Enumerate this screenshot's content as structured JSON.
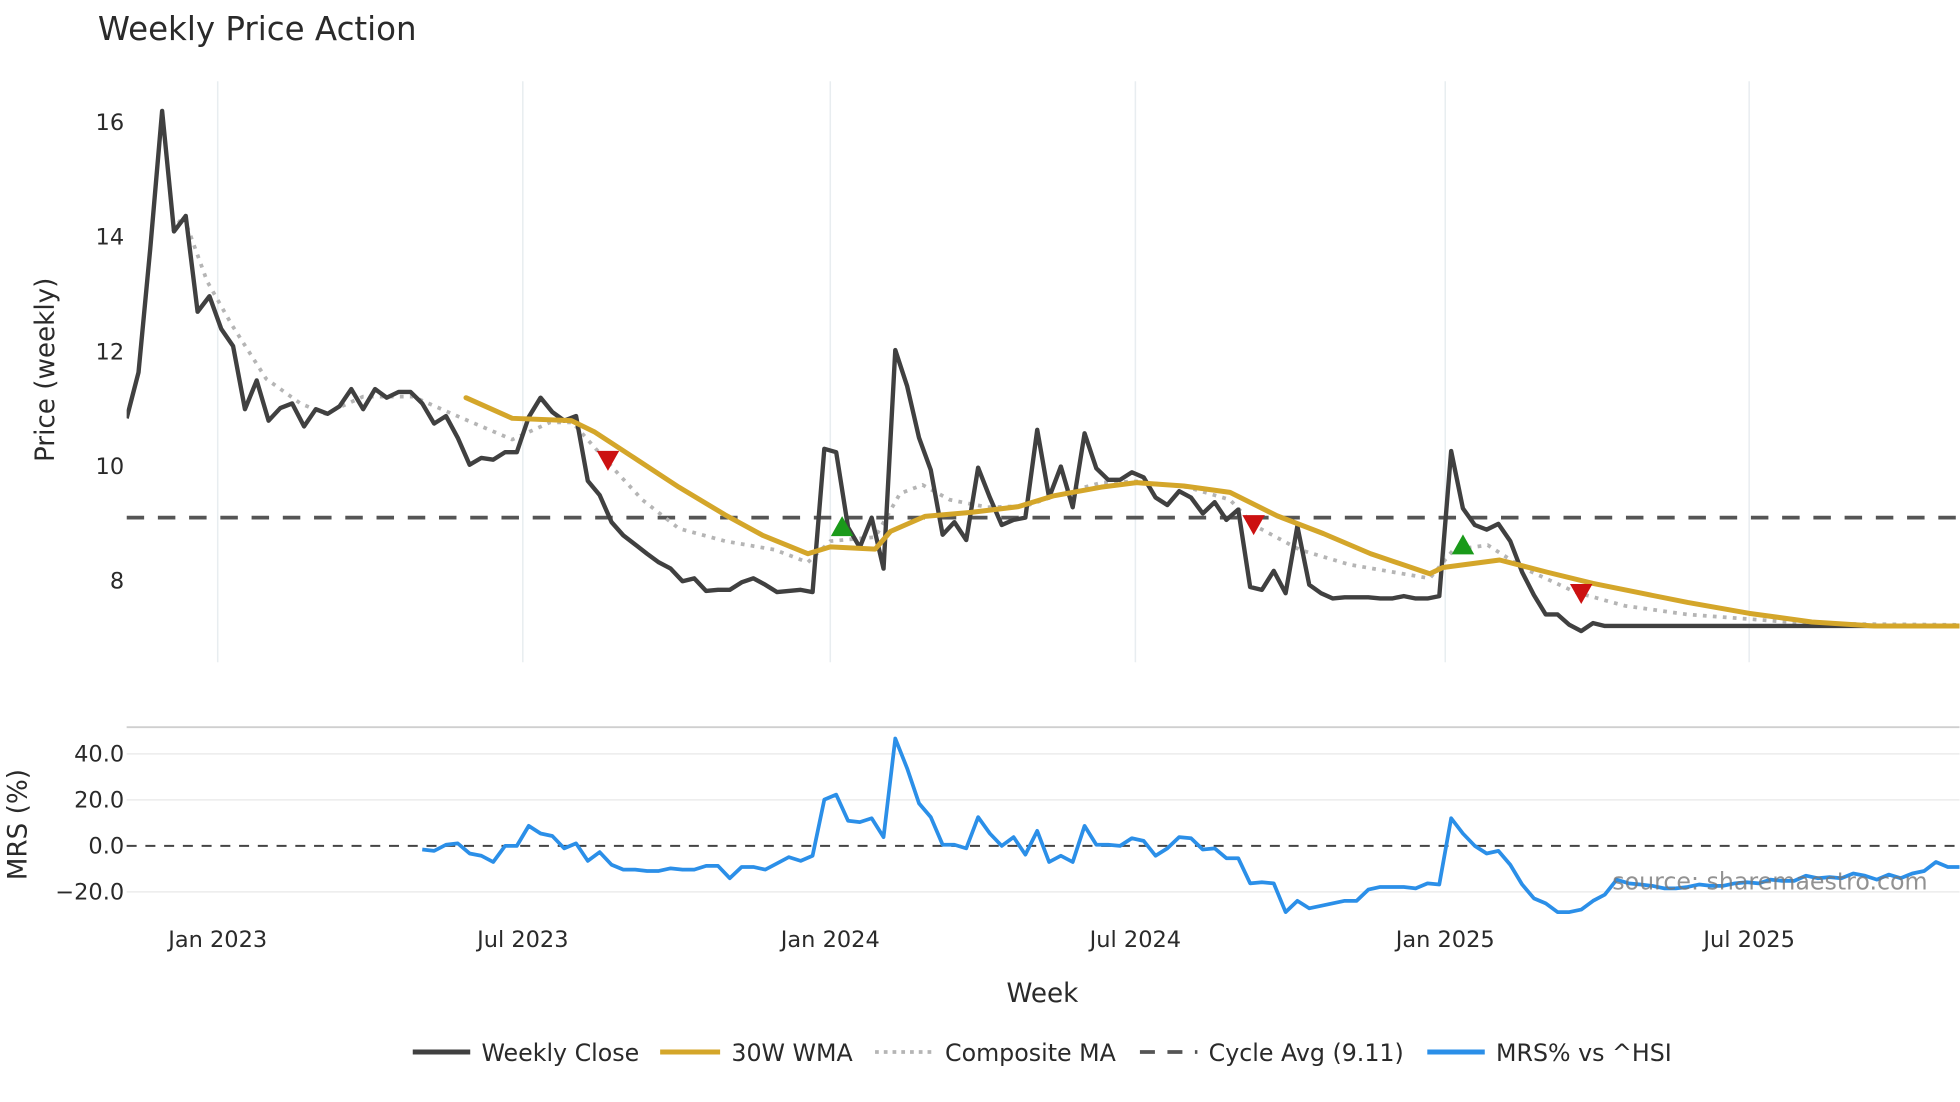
{
  "chart_data": [
    {
      "type": "line",
      "title": "Weekly Price Action",
      "ylabel": "Price (weekly)",
      "xlabel": "Week",
      "x_unit": "weeks since first plotted week (~early Nov 2022)",
      "x_range": [
        0,
        155
      ],
      "ylim": [
        6.9,
        16.7
      ],
      "yticks": [
        16,
        14,
        12,
        10,
        8
      ],
      "xticks": [
        {
          "week": 7.7,
          "label": "Jan 2023"
        },
        {
          "week": 33.5,
          "label": "Jul 2023"
        },
        {
          "week": 59.5,
          "label": "Jan 2024"
        },
        {
          "week": 85.3,
          "label": "Jul 2024"
        },
        {
          "week": 111.5,
          "label": "Jan 2025"
        },
        {
          "week": 137.2,
          "label": "Jul 2025"
        }
      ],
      "grid": "vertical",
      "series": [
        {
          "name": "Weekly Close",
          "color": "#404040",
          "start_week": 0,
          "values": [
            10.84,
            11.64,
            13.8,
            16.2,
            14.1,
            14.37,
            12.7,
            12.97,
            12.4,
            12.1,
            11.0,
            11.5,
            10.8,
            11.02,
            11.1,
            10.7,
            11.0,
            10.92,
            11.05,
            11.35,
            11.0,
            11.35,
            11.2,
            11.3,
            11.3,
            11.1,
            10.75,
            10.88,
            10.5,
            10.03,
            10.15,
            10.12,
            10.25,
            10.25,
            10.86,
            11.2,
            10.95,
            10.8,
            10.88,
            9.75,
            9.5,
            9.03,
            8.8,
            8.64,
            8.48,
            8.33,
            8.22,
            8.0,
            8.05,
            7.83,
            7.85,
            7.85,
            7.98,
            8.05,
            7.94,
            7.81,
            7.83,
            7.85,
            7.81,
            10.31,
            10.25,
            8.94,
            8.59,
            9.11,
            8.22,
            12.03,
            11.4,
            10.5,
            9.94,
            8.81,
            9.03,
            8.72,
            9.98,
            9.46,
            8.98,
            9.07,
            9.11,
            10.64,
            9.46,
            10.0,
            9.29,
            10.58,
            9.97,
            9.77,
            9.77,
            9.9,
            9.81,
            9.46,
            9.33,
            9.57,
            9.46,
            9.18,
            9.38,
            9.07,
            9.25,
            7.9,
            7.85,
            8.18,
            7.79,
            8.96,
            7.94,
            7.79,
            7.7,
            7.72,
            7.72,
            7.72,
            7.7,
            7.7,
            7.74,
            7.7,
            7.7,
            7.74,
            10.27,
            9.27,
            8.98,
            8.9,
            9.0,
            8.7,
            8.16,
            7.76,
            7.42,
            7.42,
            7.24,
            7.13,
            7.27,
            7.22,
            7.22,
            7.22,
            7.22,
            7.22,
            7.22,
            7.22,
            7.22,
            7.22,
            7.22,
            7.22,
            7.22,
            7.22,
            7.22,
            7.22,
            7.22,
            7.22,
            7.22,
            7.22,
            7.22,
            7.22,
            7.22,
            7.22,
            7.22,
            7.22,
            7.22
          ]
        },
        {
          "name": "30W WMA",
          "color": "#D4A62A",
          "points": [
            [
              28.7,
              11.2
            ],
            [
              32.6,
              10.84
            ],
            [
              37.6,
              10.8
            ],
            [
              39.6,
              10.6
            ],
            [
              42.7,
              10.18
            ],
            [
              46.7,
              9.64
            ],
            [
              50.6,
              9.16
            ],
            [
              53.8,
              8.8
            ],
            [
              57.6,
              8.48
            ],
            [
              59.5,
              8.6
            ],
            [
              63.3,
              8.56
            ],
            [
              64.6,
              8.87
            ],
            [
              67.5,
              9.13
            ],
            [
              71.4,
              9.2
            ],
            [
              75.4,
              9.3
            ],
            [
              78.4,
              9.49
            ],
            [
              82.4,
              9.64
            ],
            [
              85.4,
              9.72
            ],
            [
              89.4,
              9.66
            ],
            [
              93.3,
              9.55
            ],
            [
              97.3,
              9.14
            ],
            [
              101.2,
              8.83
            ],
            [
              105.2,
              8.48
            ],
            [
              110.2,
              8.13
            ],
            [
              111.3,
              8.24
            ],
            [
              116.1,
              8.37
            ],
            [
              120.1,
              8.16
            ],
            [
              124,
              7.96
            ],
            [
              128.1,
              7.79
            ],
            [
              132,
              7.63
            ],
            [
              137.2,
              7.44
            ],
            [
              142.5,
              7.29
            ],
            [
              147.8,
              7.22
            ],
            [
              155,
              7.22
            ]
          ]
        },
        {
          "name": "Composite MA",
          "color": "#B5B5B5",
          "points": [
            [
              3.9,
              14.1
            ],
            [
              4.8,
              14.37
            ],
            [
              6.8,
              13.23
            ],
            [
              8.9,
              12.47
            ],
            [
              11.8,
              11.53
            ],
            [
              14.7,
              11.1
            ],
            [
              16.8,
              10.92
            ],
            [
              20,
              11.22
            ],
            [
              24.2,
              11.22
            ],
            [
              28.4,
              10.84
            ],
            [
              32.6,
              10.47
            ],
            [
              35.8,
              10.77
            ],
            [
              37.7,
              10.77
            ],
            [
              40.7,
              10.07
            ],
            [
              43.6,
              9.42
            ],
            [
              46.7,
              8.92
            ],
            [
              50.6,
              8.7
            ],
            [
              54.8,
              8.55
            ],
            [
              57.6,
              8.33
            ],
            [
              59.5,
              8.7
            ],
            [
              63.3,
              8.77
            ],
            [
              65.4,
              9.53
            ],
            [
              67.3,
              9.68
            ],
            [
              69.6,
              9.42
            ],
            [
              72.8,
              9.29
            ],
            [
              76,
              9.31
            ],
            [
              79.1,
              9.53
            ],
            [
              82.4,
              9.72
            ],
            [
              85.4,
              9.74
            ],
            [
              89.7,
              9.64
            ],
            [
              93.3,
              9.42
            ],
            [
              95.3,
              8.98
            ],
            [
              99.2,
              8.55
            ],
            [
              103.4,
              8.29
            ],
            [
              110.2,
              8.05
            ],
            [
              112.2,
              8.55
            ],
            [
              115.1,
              8.63
            ],
            [
              118.2,
              8.22
            ],
            [
              122.5,
              7.81
            ],
            [
              126.7,
              7.57
            ],
            [
              132,
              7.42
            ],
            [
              142.5,
              7.26
            ],
            [
              155,
              7.24
            ]
          ]
        },
        {
          "name": "Cycle Avg (9.11)",
          "color": "#555555",
          "value": 9.11
        }
      ],
      "signals": [
        {
          "type": "sell",
          "week": 40.7,
          "value": 10.12,
          "color": "#CC1111"
        },
        {
          "type": "buy",
          "week": 60.5,
          "value": 8.94,
          "color": "#1A9A1A"
        },
        {
          "type": "sell",
          "week": 95.3,
          "value": 9.0,
          "color": "#CC1111"
        },
        {
          "type": "buy",
          "week": 113,
          "value": 8.62,
          "color": "#1A9A1A"
        },
        {
          "type": "sell",
          "week": 123,
          "value": 7.8,
          "color": "#CC1111"
        }
      ]
    },
    {
      "type": "line",
      "ylabel": "MRS (%)",
      "ylim": [
        -29,
        48
      ],
      "yticks": [
        {
          "v": 40,
          "label": "40.0"
        },
        {
          "v": 20,
          "label": "20.0"
        },
        {
          "v": 0,
          "label": "0.0"
        },
        {
          "v": -20,
          "label": "−20.0"
        }
      ],
      "zero_line": "dashed",
      "grid": "horizontal",
      "series": [
        {
          "name": "MRS% vs ^HSI",
          "color": "#2B8FE8",
          "start_week": 25,
          "values": [
            -1.6,
            -2.2,
            0.5,
            1.1,
            -3.3,
            -4.3,
            -7,
            0,
            0,
            8.7,
            5.4,
            4.3,
            -1.1,
            1.1,
            -6.5,
            -2.7,
            -8.2,
            -10.3,
            -10.3,
            -10.9,
            -10.9,
            -9.8,
            -10.3,
            -10.3,
            -8.7,
            -8.7,
            -14.1,
            -9.2,
            -9.2,
            -10.3,
            -7.6,
            -4.9,
            -6.5,
            -4.3,
            20.1,
            22.3,
            10.9,
            10.3,
            12,
            3.8,
            46.7,
            33.7,
            18.5,
            12.5,
            0.5,
            0.5,
            -1.1,
            12.5,
            5.4,
            0,
            3.8,
            -3.8,
            6.5,
            -7,
            -4.3,
            -7,
            8.7,
            0.5,
            0.5,
            0,
            3.3,
            2.2,
            -4.3,
            -1.1,
            3.8,
            3.3,
            -1.6,
            -1.1,
            -5.4,
            -5.4,
            -16.3,
            -15.8,
            -16.3,
            -28.8,
            -23.9,
            -27.2,
            -26.1,
            -25,
            -23.9,
            -23.9,
            -19,
            -17.9,
            -17.9,
            -17.9,
            -18.5,
            -16.3,
            -16.8,
            12,
            5.4,
            0,
            -3.3,
            -2.2,
            -8.2,
            -16.8,
            -22.8,
            -25,
            -28.8,
            -28.8,
            -27.7,
            -23.9,
            -21.2,
            -14.7,
            -16.3,
            -16.8,
            -17.4,
            -18.5,
            -18.5,
            -17.9,
            -16.8,
            -17.4,
            -17.4,
            -16.3,
            -15.8,
            -16.3,
            -14.7,
            -15.2,
            -15.2,
            -13,
            -14.1,
            -13.6,
            -14.1,
            -12,
            -13,
            -14.7,
            -12.5,
            -14.1,
            -12,
            -10.9,
            -7,
            -9.2,
            -9.2
          ]
        }
      ]
    }
  ],
  "title": "Weekly Price Action",
  "axes": {
    "price_label": "Price (weekly)",
    "mrs_label": "MRS (%)",
    "x_label": "Week"
  },
  "watermark": "source: sharemaestro.com",
  "legend": {
    "placement": "bottom-center",
    "items": [
      {
        "label": "Weekly Close"
      },
      {
        "label": "30W WMA"
      },
      {
        "label": "Composite MA"
      },
      {
        "label": "Cycle Avg (9.11)"
      },
      {
        "label": "MRS% vs ^HSI"
      }
    ]
  }
}
